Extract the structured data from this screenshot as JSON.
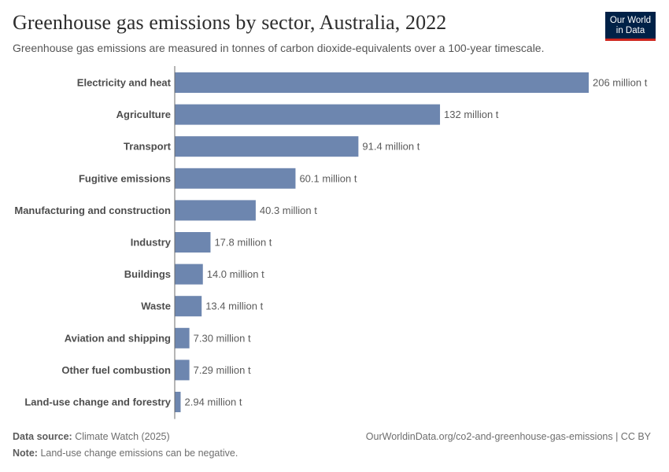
{
  "header": {
    "title": "Greenhouse gas emissions by sector, Australia, 2022",
    "subtitle": "Greenhouse gas emissions are measured in tonnes of carbon dioxide-equivalents over a 100-year timescale."
  },
  "logo": {
    "line1": "Our World",
    "line2": "in Data"
  },
  "colors": {
    "bar": "#6d86af",
    "axis": "#6b6b6b",
    "logo_bg": "#002147",
    "logo_accent": "#ce261e"
  },
  "chart_data": {
    "type": "bar",
    "orientation": "horizontal",
    "title": "Greenhouse gas emissions by sector, Australia, 2022",
    "xlabel": "",
    "ylabel": "",
    "unit": "million t",
    "xlim": [
      0,
      206
    ],
    "categories": [
      "Electricity and heat",
      "Agriculture",
      "Transport",
      "Fugitive emissions",
      "Manufacturing and construction",
      "Industry",
      "Buildings",
      "Waste",
      "Aviation and shipping",
      "Other fuel combustion",
      "Land-use change and forestry"
    ],
    "values": [
      206,
      132,
      91.4,
      60.1,
      40.3,
      17.8,
      14.0,
      13.4,
      7.3,
      7.29,
      2.94
    ],
    "value_labels": [
      "206 million t",
      "132 million t",
      "91.4 million t",
      "60.1 million t",
      "40.3 million t",
      "17.8 million t",
      "14.0 million t",
      "13.4 million t",
      "7.30 million t",
      "7.29 million t",
      "2.94 million t"
    ]
  },
  "footer": {
    "source_label": "Data source:",
    "source_value": "Climate Watch (2025)",
    "note_label": "Note:",
    "note_value": "Land-use change emissions can be negative.",
    "url_text": "OurWorldinData.org/co2-and-greenhouse-gas-emissions | CC BY"
  }
}
